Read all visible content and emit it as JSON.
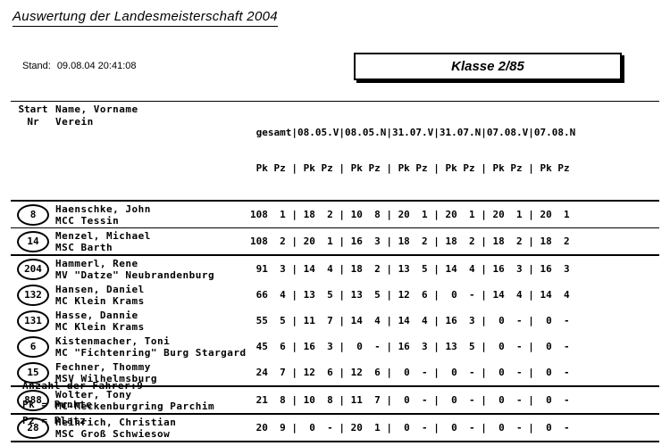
{
  "page": {
    "title": "Auswertung der Landesmeisterschaft 2004",
    "stand_label": "Stand:",
    "stand_value": "09.08.04 20:41:08",
    "class_label": "Klasse 2/85"
  },
  "colors": {
    "ink": "#000000",
    "paper": "#ffffff"
  },
  "table": {
    "header": {
      "start_line1": "Start",
      "start_line2": "Nr",
      "name_line1": "Name, Vorname",
      "name_line2": "Verein",
      "race_labels": [
        "gesamt",
        "08.05.V",
        "08.05.N",
        "31.07.V",
        "31.07.N",
        "07.08.V",
        "07.08.N"
      ],
      "pk_label": "Pk",
      "pz_label": "Pz"
    },
    "rows": [
      {
        "nr": "8",
        "name": "Haenschke, John",
        "club": "MCC Tessin",
        "gesamt": {
          "pk": "108",
          "pz": "1"
        },
        "races": [
          {
            "pk": "18",
            "pz": "2"
          },
          {
            "pk": "10",
            "pz": "8"
          },
          {
            "pk": "20",
            "pz": "1"
          },
          {
            "pk": "20",
            "pz": "1"
          },
          {
            "pk": "20",
            "pz": "1"
          },
          {
            "pk": "20",
            "pz": "1"
          }
        ],
        "separator": "thin"
      },
      {
        "nr": "14",
        "name": "Menzel, Michael",
        "club": "MSC Barth",
        "gesamt": {
          "pk": "108",
          "pz": "2"
        },
        "races": [
          {
            "pk": "20",
            "pz": "1"
          },
          {
            "pk": "16",
            "pz": "3"
          },
          {
            "pk": "18",
            "pz": "2"
          },
          {
            "pk": "18",
            "pz": "2"
          },
          {
            "pk": "18",
            "pz": "2"
          },
          {
            "pk": "18",
            "pz": "2"
          }
        ],
        "separator": "thick"
      },
      {
        "nr": "204",
        "name": "Hammerl, Rene",
        "club": "MV \"Datze\" Neubrandenburg",
        "gesamt": {
          "pk": "91",
          "pz": "3"
        },
        "races": [
          {
            "pk": "14",
            "pz": "4"
          },
          {
            "pk": "18",
            "pz": "2"
          },
          {
            "pk": "13",
            "pz": "5"
          },
          {
            "pk": "14",
            "pz": "4"
          },
          {
            "pk": "16",
            "pz": "3"
          },
          {
            "pk": "16",
            "pz": "3"
          }
        ],
        "separator": "none"
      },
      {
        "nr": "132",
        "name": "Hansen, Daniel",
        "club": "MC Klein Krams",
        "gesamt": {
          "pk": "66",
          "pz": "4"
        },
        "races": [
          {
            "pk": "13",
            "pz": "5"
          },
          {
            "pk": "13",
            "pz": "5"
          },
          {
            "pk": "12",
            "pz": "6"
          },
          {
            "pk": "0",
            "pz": "-"
          },
          {
            "pk": "14",
            "pz": "4"
          },
          {
            "pk": "14",
            "pz": "4"
          }
        ],
        "separator": "none"
      },
      {
        "nr": "131",
        "name": "Hasse, Dannie",
        "club": "MC Klein Krams",
        "gesamt": {
          "pk": "55",
          "pz": "5"
        },
        "races": [
          {
            "pk": "11",
            "pz": "7"
          },
          {
            "pk": "14",
            "pz": "4"
          },
          {
            "pk": "14",
            "pz": "4"
          },
          {
            "pk": "16",
            "pz": "3"
          },
          {
            "pk": "0",
            "pz": "-"
          },
          {
            "pk": "0",
            "pz": "-"
          }
        ],
        "separator": "none"
      },
      {
        "nr": "6",
        "name": "Kistenmacher, Toni",
        "club": "MC \"Fichtenring\" Burg Stargard",
        "gesamt": {
          "pk": "45",
          "pz": "6"
        },
        "races": [
          {
            "pk": "16",
            "pz": "3"
          },
          {
            "pk": "0",
            "pz": "-"
          },
          {
            "pk": "16",
            "pz": "3"
          },
          {
            "pk": "13",
            "pz": "5"
          },
          {
            "pk": "0",
            "pz": "-"
          },
          {
            "pk": "0",
            "pz": "-"
          }
        ],
        "separator": "none"
      },
      {
        "nr": "15",
        "name": "Fechner, Thommy",
        "club": "MSV Wilhelmsburg",
        "gesamt": {
          "pk": "24",
          "pz": "7"
        },
        "races": [
          {
            "pk": "12",
            "pz": "6"
          },
          {
            "pk": "12",
            "pz": "6"
          },
          {
            "pk": "0",
            "pz": "-"
          },
          {
            "pk": "0",
            "pz": "-"
          },
          {
            "pk": "0",
            "pz": "-"
          },
          {
            "pk": "0",
            "pz": "-"
          }
        ],
        "separator": "thick"
      },
      {
        "nr": "888",
        "name": "Wolter, Tony",
        "club": "MC-Meckenburgring Parchim",
        "gesamt": {
          "pk": "21",
          "pz": "8"
        },
        "races": [
          {
            "pk": "10",
            "pz": "8"
          },
          {
            "pk": "11",
            "pz": "7"
          },
          {
            "pk": "0",
            "pz": "-"
          },
          {
            "pk": "0",
            "pz": "-"
          },
          {
            "pk": "0",
            "pz": "-"
          },
          {
            "pk": "0",
            "pz": "-"
          }
        ],
        "separator": "thick"
      },
      {
        "nr": "28",
        "name": "Heinrich, Christian",
        "club": "MSC Groß Schwiesow",
        "gesamt": {
          "pk": "20",
          "pz": "9"
        },
        "races": [
          {
            "pk": "0",
            "pz": "-"
          },
          {
            "pk": "20",
            "pz": "1"
          },
          {
            "pk": "0",
            "pz": "-"
          },
          {
            "pk": "0",
            "pz": "-"
          },
          {
            "pk": "0",
            "pz": "-"
          },
          {
            "pk": "0",
            "pz": "-"
          }
        ],
        "separator": "thick"
      }
    ]
  },
  "footer": {
    "rider_count": "Anzahl der Fahrer:9",
    "legend_pk": "Pk = Punkte",
    "legend_pz": "Pz = Platz"
  }
}
